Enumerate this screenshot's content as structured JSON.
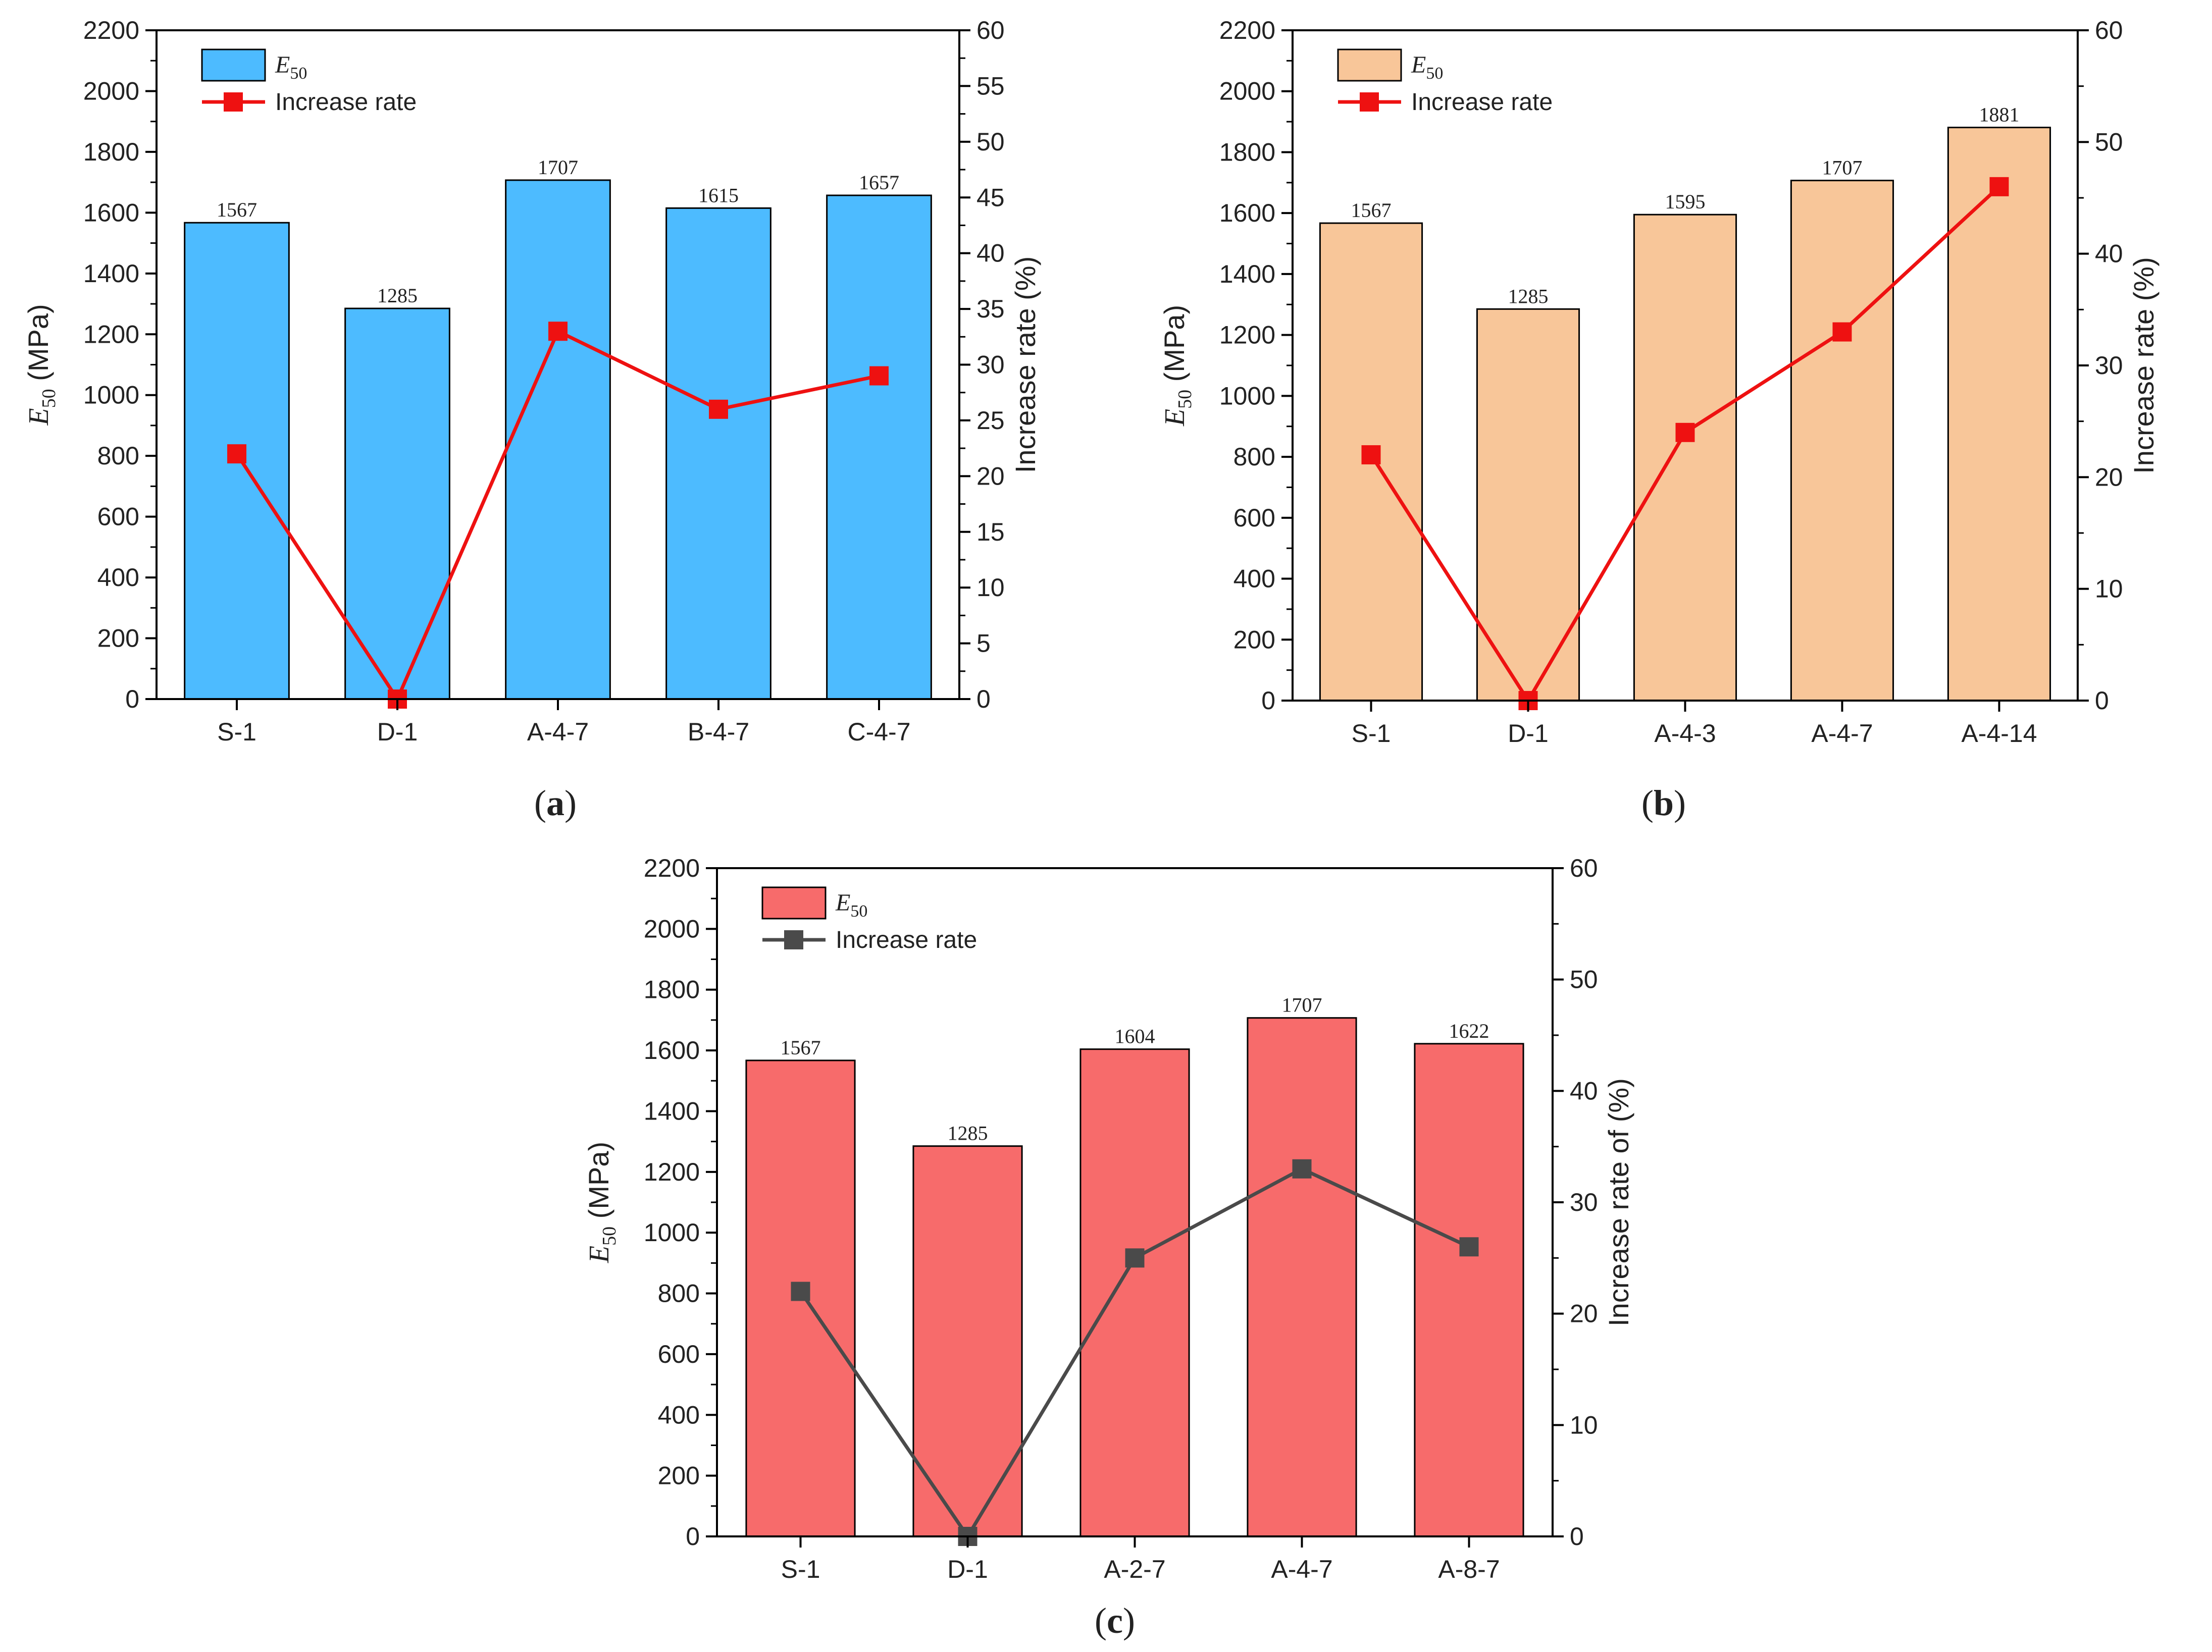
{
  "chart_data": [
    {
      "id": "a",
      "type": "bar",
      "panel_label": "(a)",
      "categories": [
        "S-1",
        "D-1",
        "A-4-7",
        "B-4-7",
        "C-4-7"
      ],
      "series": [
        {
          "name": "E50",
          "legend_main": "E",
          "legend_sub": "50",
          "kind": "bar",
          "axis": "left",
          "values": [
            1567,
            1285,
            1707,
            1615,
            1657
          ]
        },
        {
          "name": "Increase rate",
          "kind": "line",
          "axis": "right",
          "values": [
            22,
            0,
            33,
            26,
            29
          ]
        }
      ],
      "value_labels": [
        "1567",
        "1285",
        "1707",
        "1615",
        "1657"
      ],
      "ylabel_main": "E",
      "ylabel_sub": "50",
      "ylabel_rest": " (MPa)",
      "y2label": "Increase rate (%)",
      "ylim": [
        0,
        2200
      ],
      "y2lim": [
        0,
        60
      ],
      "yticks": [
        0,
        200,
        400,
        600,
        800,
        1000,
        1200,
        1400,
        1600,
        1800,
        2000,
        2200
      ],
      "y2ticks": [
        0,
        5,
        10,
        15,
        20,
        25,
        30,
        35,
        40,
        45,
        50,
        55,
        60
      ],
      "colors": {
        "bar": "#4dbbff",
        "line": "#ee1111",
        "right_axis_text": "#222222"
      }
    },
    {
      "id": "b",
      "type": "bar",
      "panel_label": "(b)",
      "categories": [
        "S-1",
        "D-1",
        "A-4-3",
        "A-4-7",
        "A-4-14"
      ],
      "series": [
        {
          "name": "E50",
          "legend_main": "E",
          "legend_sub": "50",
          "kind": "bar",
          "axis": "left",
          "values": [
            1567,
            1285,
            1595,
            1707,
            1881
          ]
        },
        {
          "name": "Increase rate",
          "kind": "line",
          "axis": "right",
          "values": [
            22,
            0,
            24,
            33,
            46
          ]
        }
      ],
      "value_labels": [
        "1567",
        "1285",
        "1595",
        "1707",
        "1881"
      ],
      "ylabel_main": "E",
      "ylabel_sub": "50",
      "ylabel_rest": " (MPa)",
      "y2label": "Increase rate (%)",
      "ylim": [
        0,
        2200
      ],
      "y2lim": [
        0,
        60
      ],
      "yticks": [
        0,
        200,
        400,
        600,
        800,
        1000,
        1200,
        1400,
        1600,
        1800,
        2000,
        2200
      ],
      "y2ticks": [
        0,
        10,
        20,
        30,
        40,
        50,
        60
      ],
      "colors": {
        "bar": "#f8c699",
        "line": "#ee1111",
        "right_axis_text": "#222222"
      }
    },
    {
      "id": "c",
      "type": "bar",
      "panel_label": "(c)",
      "categories": [
        "S-1",
        "D-1",
        "A-2-7",
        "A-4-7",
        "A-8-7"
      ],
      "series": [
        {
          "name": "E50",
          "legend_main": "E",
          "legend_sub": "50",
          "kind": "bar",
          "axis": "left",
          "values": [
            1567,
            1285,
            1604,
            1707,
            1622
          ]
        },
        {
          "name": "Increase rate",
          "kind": "line",
          "axis": "right",
          "values": [
            22,
            0,
            25,
            33,
            26
          ]
        }
      ],
      "value_labels": [
        "1567",
        "1285",
        "1604",
        "1707",
        "1622"
      ],
      "ylabel_main": "E",
      "ylabel_sub": "50",
      "ylabel_rest": " (MPa)",
      "y2label": "Increase rate of (%)",
      "ylim": [
        0,
        2200
      ],
      "y2lim": [
        0,
        60
      ],
      "yticks": [
        0,
        200,
        400,
        600,
        800,
        1000,
        1200,
        1400,
        1600,
        1800,
        2000,
        2200
      ],
      "y2ticks": [
        0,
        10,
        20,
        30,
        40,
        50,
        60
      ],
      "colors": {
        "bar": "#f76b6b",
        "line": "#4a4a4a",
        "right_axis_text": "#666666"
      }
    }
  ]
}
